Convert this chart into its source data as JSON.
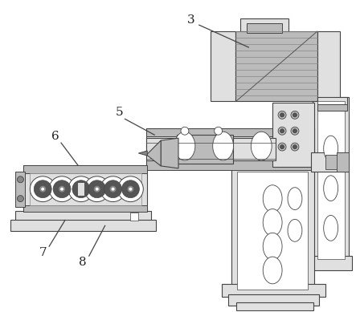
{
  "bg_color": "#ffffff",
  "lc": "#444444",
  "fl": "#e0e0e0",
  "fm": "#bbbbbb",
  "fd": "#888888",
  "fdd": "#555555"
}
